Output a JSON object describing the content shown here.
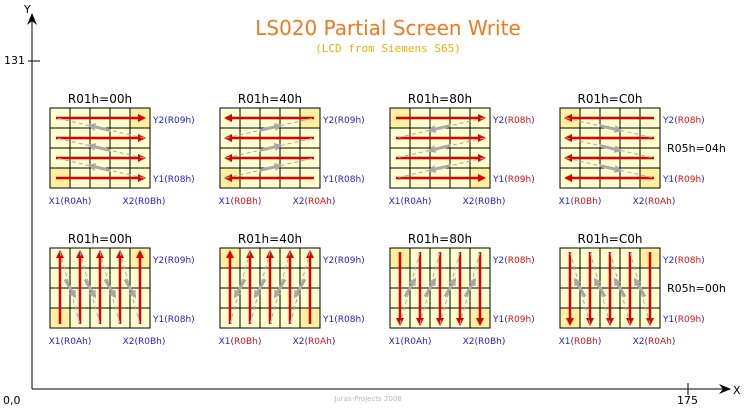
{
  "title": "LS020 Partial Screen Write",
  "subtitle": "(LCD from Siemens S65)",
  "credit": "Juras-Projects 2008",
  "axes": {
    "x_label": "X",
    "y_label": "Y",
    "origin_label": "0,0",
    "x_max_label": "175",
    "y_max_label": "131"
  },
  "colors": {
    "title": "#f07820",
    "subtitle": "#f0b000",
    "blue_label": "#1f1fd0",
    "red_label": "#e01010",
    "arrow_red": "#e00000",
    "arrow_gray": "#a8a8a8",
    "grid_fill": "#ffffd0",
    "corner_fill": "#fff0a0"
  },
  "rows": [
    {
      "mode_label": "R05h=04h",
      "panels": [
        {
          "header": "R01h=00h",
          "y_top": {
            "name": "Y2",
            "reg": "R09h",
            "reg_red": false
          },
          "y_bottom": {
            "name": "Y1",
            "reg": "R08h",
            "reg_red": false
          },
          "x_left": {
            "name": "X1",
            "reg": "R0Ah",
            "reg_red": false
          },
          "x_right": {
            "name": "X2",
            "reg": "R0Bh",
            "reg_red": false
          }
        },
        {
          "header": "R01h=40h",
          "y_top": {
            "name": "Y2",
            "reg": "R09h",
            "reg_red": false
          },
          "y_bottom": {
            "name": "Y1",
            "reg": "R08h",
            "reg_red": false
          },
          "x_left": {
            "name": "X1",
            "reg": "R0Bh",
            "reg_red": true
          },
          "x_right": {
            "name": "X2",
            "reg": "R0Ah",
            "reg_red": true
          }
        },
        {
          "header": "R01h=80h",
          "y_top": {
            "name": "Y2",
            "reg": "R08h",
            "reg_red": true
          },
          "y_bottom": {
            "name": "Y1",
            "reg": "R09h",
            "reg_red": true
          },
          "x_left": {
            "name": "X1",
            "reg": "R0Ah",
            "reg_red": false
          },
          "x_right": {
            "name": "X2",
            "reg": "R0Bh",
            "reg_red": false
          }
        },
        {
          "header": "R01h=C0h",
          "y_top": {
            "name": "Y2",
            "reg": "R08h",
            "reg_red": true
          },
          "y_bottom": {
            "name": "Y1",
            "reg": "R09h",
            "reg_red": true
          },
          "x_left": {
            "name": "X1",
            "reg": "R0Bh",
            "reg_red": true
          },
          "x_right": {
            "name": "X2",
            "reg": "R0Ah",
            "reg_red": true
          }
        }
      ]
    },
    {
      "mode_label": "R05h=00h",
      "panels": [
        {
          "header": "R01h=00h",
          "y_top": {
            "name": "Y2",
            "reg": "R09h",
            "reg_red": false
          },
          "y_bottom": {
            "name": "Y1",
            "reg": "R08h",
            "reg_red": false
          },
          "x_left": {
            "name": "X1",
            "reg": "R0Ah",
            "reg_red": false
          },
          "x_right": {
            "name": "X2",
            "reg": "R0Bh",
            "reg_red": false
          }
        },
        {
          "header": "R01h=40h",
          "y_top": {
            "name": "Y2",
            "reg": "R09h",
            "reg_red": false
          },
          "y_bottom": {
            "name": "Y1",
            "reg": "R08h",
            "reg_red": false
          },
          "x_left": {
            "name": "X1",
            "reg": "R0Bh",
            "reg_red": true
          },
          "x_right": {
            "name": "X2",
            "reg": "R0Ah",
            "reg_red": true
          }
        },
        {
          "header": "R01h=80h",
          "y_top": {
            "name": "Y2",
            "reg": "R08h",
            "reg_red": true
          },
          "y_bottom": {
            "name": "Y1",
            "reg": "R09h",
            "reg_red": true
          },
          "x_left": {
            "name": "X1",
            "reg": "R0Ah",
            "reg_red": false
          },
          "x_right": {
            "name": "X2",
            "reg": "R0Bh",
            "reg_red": false
          }
        },
        {
          "header": "R01h=C0h",
          "y_top": {
            "name": "Y2",
            "reg": "R08h",
            "reg_red": true
          },
          "y_bottom": {
            "name": "Y1",
            "reg": "R09h",
            "reg_red": true
          },
          "x_left": {
            "name": "X1",
            "reg": "R0Bh",
            "reg_red": true
          },
          "x_right": {
            "name": "X2",
            "reg": "R0Ah",
            "reg_red": true
          }
        }
      ]
    }
  ]
}
